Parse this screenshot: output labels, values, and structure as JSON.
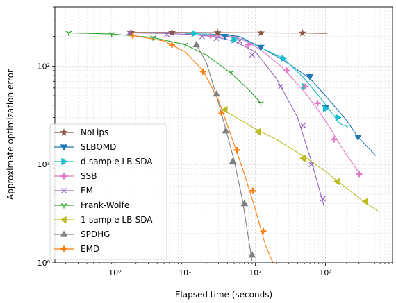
{
  "chart_data": {
    "type": "line",
    "xlabel": "Elapsed time (seconds)",
    "ylabel": "Approximate optimization error",
    "xscale": "log",
    "yscale": "log",
    "xlim": [
      0.14,
      9000
    ],
    "ylim": [
      1,
      400
    ],
    "grid": true,
    "legend_position": "lower-left",
    "x_ticks": [
      {
        "value": 1,
        "label": "10⁰"
      },
      {
        "value": 10,
        "label": "10¹"
      },
      {
        "value": 100,
        "label": "10²"
      },
      {
        "value": 1000,
        "label": "10³"
      }
    ],
    "y_ticks": [
      {
        "value": 1,
        "label": "10⁰"
      },
      {
        "value": 10,
        "label": "10¹"
      },
      {
        "value": 100,
        "label": "10²"
      }
    ],
    "series": [
      {
        "name": "NoLips",
        "color": "#8c564b",
        "marker": "star",
        "x": [
          1.7,
          6.5,
          29,
          120,
          470,
          1050
        ],
        "y": [
          220,
          220,
          219,
          218,
          217,
          215
        ],
        "marker_x": [
          1.7,
          6.5,
          29,
          120,
          470
        ],
        "marker_y": [
          220,
          220,
          219,
          218,
          217
        ]
      },
      {
        "name": "SLBOMD",
        "color": "#1f77b4",
        "marker": "triangle-down",
        "x": [
          30,
          60,
          120,
          250,
          600,
          1000,
          2000,
          2900,
          5200
        ],
        "y": [
          212,
          200,
          155,
          115,
          75,
          50,
          28,
          19,
          12.3
        ],
        "marker_x": [
          37,
          120,
          600,
          1000,
          2900
        ],
        "marker_y": [
          200,
          155,
          78,
          38,
          19
        ]
      },
      {
        "name": "d-sample LB-SDA",
        "color": "#17becf",
        "marker": "triangle-right",
        "x": [
          10,
          30,
          70,
          130,
          250,
          500,
          900,
          1600,
          2100
        ],
        "y": [
          215,
          210,
          185,
          150,
          120,
          75,
          45,
          26,
          24
        ],
        "marker_x": [
          13.5,
          50,
          250,
          500,
          1000,
          1500
        ],
        "marker_y": [
          215,
          185,
          120,
          62,
          37,
          30
        ]
      },
      {
        "name": "SSB",
        "color": "#e377c2",
        "marker": "plus",
        "x": [
          20,
          50,
          80,
          130,
          250,
          500,
          800,
          1100,
          1800,
          3100
        ],
        "y": [
          205,
          200,
          175,
          140,
          95,
          55,
          35,
          25,
          14,
          8
        ],
        "marker_x": [
          23,
          80,
          280,
          520,
          770,
          1320,
          3000
        ],
        "marker_y": [
          205,
          165,
          90,
          62,
          42,
          18,
          8
        ]
      },
      {
        "name": "EM",
        "color": "#9467bd",
        "marker": "x",
        "x": [
          1.6,
          5,
          12,
          25,
          50,
          100,
          200,
          400,
          650,
          950
        ],
        "y": [
          218,
          215,
          210,
          200,
          180,
          140,
          75,
          30,
          10,
          3.8
        ],
        "marker_x": [
          1.6,
          5.5,
          17.5,
          28,
          60,
          90,
          230,
          480,
          630,
          920
        ],
        "marker_y": [
          218,
          210,
          200,
          192,
          180,
          130,
          62,
          25,
          10,
          4.5
        ]
      },
      {
        "name": "Frank-Wolfe",
        "color": "#2ca02c",
        "marker": "tri-down",
        "x": [
          0.22,
          0.9,
          3.5,
          10,
          20,
          45,
          80,
          120
        ],
        "y": [
          218,
          212,
          195,
          165,
          130,
          85,
          58,
          42
        ],
        "marker_x": [
          0.22,
          0.9,
          3.5,
          10,
          45,
          120
        ],
        "marker_y": [
          218,
          212,
          195,
          165,
          86,
          42
        ]
      },
      {
        "name": "1-sample LB-SDA",
        "color": "#bcbd22",
        "marker": "triangle-left",
        "x": [
          35,
          100,
          200,
          500,
          1000,
          1400,
          3500,
          5800
        ],
        "y": [
          36,
          23,
          18,
          12,
          8.5,
          7,
          4.2,
          3.3
        ],
        "marker_x": [
          37,
          110,
          480,
          1460,
          3700
        ],
        "marker_y": [
          36,
          21.5,
          11.5,
          6.7,
          4.2
        ]
      },
      {
        "name": "SPDHG",
        "color": "#7f7f7f",
        "marker": "triangle-up",
        "x": [
          14.5,
          20,
          28,
          40,
          50,
          65,
          90
        ],
        "y": [
          165,
          110,
          50,
          20,
          11,
          4.5,
          1.05
        ],
        "marker_x": [
          14.5,
          28,
          38,
          48,
          70,
          90
        ],
        "marker_y": [
          165,
          52,
          22,
          10.8,
          4,
          1.2
        ]
      },
      {
        "name": "EMD",
        "color": "#ff7f0e",
        "marker": "plus",
        "x": [
          1.8,
          5,
          10,
          18,
          30,
          50,
          70,
          100,
          140,
          190
        ],
        "y": [
          205,
          180,
          140,
          90,
          45,
          16,
          8,
          3.5,
          1.5,
          0.9
        ],
        "marker_x": [
          1.8,
          6.5,
          18,
          33,
          55,
          92,
          130
        ],
        "marker_y": [
          205,
          165,
          88,
          33,
          14,
          5.4,
          2.1
        ]
      }
    ]
  }
}
